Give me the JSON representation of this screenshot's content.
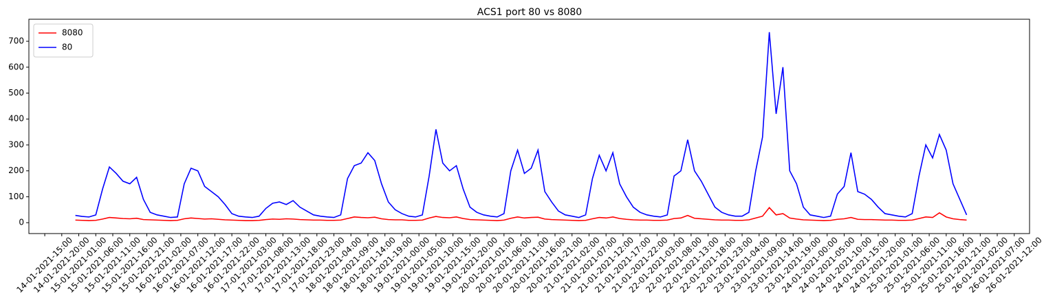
{
  "chart_data": {
    "type": "line",
    "title": "ACS1 port 80 vs 8080",
    "legend": "upper left",
    "x": [
      "15-01-2021-00:00",
      "15-01-2021-02:00",
      "15-01-2021-04:00",
      "15-01-2021-06:00",
      "15-01-2021-08:00",
      "15-01-2021-10:00",
      "15-01-2021-12:00",
      "15-01-2021-14:00",
      "15-01-2021-16:00",
      "15-01-2021-18:00",
      "15-01-2021-20:00",
      "15-01-2021-22:00",
      "16-01-2021-00:00",
      "16-01-2021-02:00",
      "16-01-2021-04:00",
      "16-01-2021-06:00",
      "16-01-2021-08:00",
      "16-01-2021-10:00",
      "16-01-2021-12:00",
      "16-01-2021-14:00",
      "16-01-2021-16:00",
      "16-01-2021-18:00",
      "16-01-2021-20:00",
      "16-01-2021-22:00",
      "17-01-2021-00:00",
      "17-01-2021-02:00",
      "17-01-2021-04:00",
      "17-01-2021-06:00",
      "17-01-2021-08:00",
      "17-01-2021-10:00",
      "17-01-2021-12:00",
      "17-01-2021-14:00",
      "17-01-2021-16:00",
      "17-01-2021-18:00",
      "17-01-2021-20:00",
      "17-01-2021-22:00",
      "18-01-2021-00:00",
      "18-01-2021-02:00",
      "18-01-2021-04:00",
      "18-01-2021-06:00",
      "18-01-2021-08:00",
      "18-01-2021-10:00",
      "18-01-2021-12:00",
      "18-01-2021-14:00",
      "18-01-2021-16:00",
      "18-01-2021-18:00",
      "18-01-2021-20:00",
      "18-01-2021-22:00",
      "19-01-2021-00:00",
      "19-01-2021-02:00",
      "19-01-2021-04:00",
      "19-01-2021-06:00",
      "19-01-2021-08:00",
      "19-01-2021-10:00",
      "19-01-2021-12:00",
      "19-01-2021-14:00",
      "19-01-2021-16:00",
      "19-01-2021-18:00",
      "19-01-2021-20:00",
      "19-01-2021-22:00",
      "20-01-2021-00:00",
      "20-01-2021-02:00",
      "20-01-2021-04:00",
      "20-01-2021-06:00",
      "20-01-2021-08:00",
      "20-01-2021-10:00",
      "20-01-2021-12:00",
      "20-01-2021-14:00",
      "20-01-2021-16:00",
      "20-01-2021-18:00",
      "20-01-2021-20:00",
      "20-01-2021-22:00",
      "21-01-2021-00:00",
      "21-01-2021-02:00",
      "21-01-2021-04:00",
      "21-01-2021-06:00",
      "21-01-2021-08:00",
      "21-01-2021-10:00",
      "21-01-2021-12:00",
      "21-01-2021-14:00",
      "21-01-2021-16:00",
      "21-01-2021-18:00",
      "21-01-2021-20:00",
      "21-01-2021-22:00",
      "22-01-2021-00:00",
      "22-01-2021-02:00",
      "22-01-2021-04:00",
      "22-01-2021-06:00",
      "22-01-2021-08:00",
      "22-01-2021-10:00",
      "22-01-2021-12:00",
      "22-01-2021-14:00",
      "22-01-2021-16:00",
      "22-01-2021-18:00",
      "22-01-2021-20:00",
      "22-01-2021-22:00",
      "23-01-2021-00:00",
      "23-01-2021-02:00",
      "23-01-2021-04:00",
      "23-01-2021-06:00",
      "23-01-2021-08:00",
      "23-01-2021-10:00",
      "23-01-2021-12:00",
      "23-01-2021-14:00",
      "23-01-2021-16:00",
      "23-01-2021-18:00",
      "23-01-2021-20:00",
      "23-01-2021-22:00",
      "24-01-2021-00:00",
      "24-01-2021-02:00",
      "24-01-2021-04:00",
      "24-01-2021-06:00",
      "24-01-2021-08:00",
      "24-01-2021-10:00",
      "24-01-2021-12:00",
      "24-01-2021-14:00",
      "24-01-2021-16:00",
      "24-01-2021-18:00",
      "24-01-2021-20:00",
      "24-01-2021-22:00",
      "25-01-2021-00:00",
      "25-01-2021-02:00",
      "25-01-2021-04:00",
      "25-01-2021-06:00",
      "25-01-2021-08:00",
      "25-01-2021-10:00",
      "25-01-2021-12:00",
      "25-01-2021-14:00",
      "25-01-2021-16:00",
      "25-01-2021-18:00",
      "25-01-2021-20:00",
      "25-01-2021-22:00"
    ],
    "series": [
      {
        "name": "8080",
        "color": "#ff0000",
        "values": [
          10,
          9,
          8,
          9,
          14,
          20,
          18,
          16,
          15,
          17,
          12,
          11,
          10,
          9,
          8,
          9,
          15,
          18,
          16,
          14,
          15,
          13,
          11,
          10,
          9,
          8,
          8,
          9,
          12,
          14,
          13,
          15,
          14,
          12,
          11,
          10,
          10,
          9,
          9,
          10,
          16,
          22,
          20,
          19,
          21,
          15,
          12,
          11,
          11,
          9,
          9,
          10,
          18,
          24,
          20,
          19,
          22,
          16,
          12,
          11,
          10,
          9,
          8,
          10,
          17,
          22,
          18,
          20,
          21,
          14,
          12,
          11,
          10,
          9,
          8,
          9,
          15,
          20,
          18,
          22,
          16,
          13,
          11,
          10,
          10,
          9,
          9,
          10,
          16,
          18,
          28,
          17,
          15,
          13,
          11,
          10,
          10,
          9,
          9,
          11,
          18,
          25,
          58,
          30,
          35,
          18,
          14,
          11,
          10,
          9,
          8,
          9,
          13,
          15,
          20,
          13,
          12,
          12,
          11,
          10,
          10,
          9,
          9,
          10,
          16,
          22,
          20,
          38,
          22,
          15,
          12,
          10
        ]
      },
      {
        "name": "80",
        "color": "#0000ff",
        "values": [
          28,
          24,
          22,
          30,
          130,
          215,
          190,
          160,
          150,
          175,
          90,
          40,
          30,
          25,
          20,
          22,
          150,
          210,
          200,
          140,
          120,
          100,
          70,
          35,
          25,
          22,
          20,
          25,
          55,
          75,
          80,
          70,
          85,
          60,
          45,
          30,
          25,
          22,
          20,
          30,
          170,
          220,
          230,
          270,
          240,
          150,
          80,
          50,
          35,
          25,
          22,
          30,
          180,
          360,
          230,
          200,
          220,
          130,
          60,
          40,
          30,
          25,
          22,
          35,
          200,
          280,
          190,
          210,
          280,
          120,
          80,
          45,
          30,
          25,
          20,
          30,
          170,
          260,
          200,
          270,
          150,
          100,
          60,
          40,
          30,
          25,
          22,
          30,
          180,
          200,
          320,
          200,
          160,
          110,
          60,
          40,
          30,
          25,
          25,
          40,
          200,
          330,
          735,
          420,
          600,
          200,
          150,
          60,
          30,
          25,
          20,
          25,
          110,
          140,
          270,
          120,
          110,
          90,
          60,
          35,
          30,
          25,
          22,
          35,
          180,
          300,
          250,
          340,
          280,
          150,
          90,
          30
        ]
      }
    ],
    "xlim": [
      "14-01-2021-10:20",
      "26-01-2021-16:30"
    ],
    "xticks": [
      "14-01-2021-15:00",
      "14-01-2021-20:00",
      "15-01-2021-01:00",
      "15-01-2021-06:00",
      "15-01-2021-11:00",
      "15-01-2021-16:00",
      "15-01-2021-21:00",
      "16-01-2021-02:00",
      "16-01-2021-07:00",
      "16-01-2021-12:00",
      "16-01-2021-17:00",
      "16-01-2021-22:00",
      "17-01-2021-03:00",
      "17-01-2021-08:00",
      "17-01-2021-13:00",
      "17-01-2021-18:00",
      "17-01-2021-23:00",
      "18-01-2021-04:00",
      "18-01-2021-09:00",
      "18-01-2021-14:00",
      "18-01-2021-19:00",
      "19-01-2021-00:00",
      "19-01-2021-05:00",
      "19-01-2021-10:00",
      "19-01-2021-15:00",
      "19-01-2021-20:00",
      "20-01-2021-01:00",
      "20-01-2021-06:00",
      "20-01-2021-11:00",
      "20-01-2021-16:00",
      "20-01-2021-21:00",
      "21-01-2021-02:00",
      "21-01-2021-07:00",
      "21-01-2021-12:00",
      "21-01-2021-17:00",
      "21-01-2021-22:00",
      "22-01-2021-03:00",
      "22-01-2021-08:00",
      "22-01-2021-13:00",
      "22-01-2021-18:00",
      "22-01-2021-23:00",
      "23-01-2021-04:00",
      "23-01-2021-09:00",
      "23-01-2021-14:00",
      "23-01-2021-19:00",
      "24-01-2021-00:00",
      "24-01-2021-05:00",
      "24-01-2021-10:00",
      "24-01-2021-15:00",
      "24-01-2021-20:00",
      "25-01-2021-01:00",
      "25-01-2021-06:00",
      "25-01-2021-11:00",
      "25-01-2021-16:00",
      "25-01-2021-21:00",
      "26-01-2021-02:00",
      "26-01-2021-07:00",
      "26-01-2021-12:00"
    ],
    "ylim": [
      -42,
      785
    ],
    "yticks": [
      0,
      100,
      200,
      300,
      400,
      500,
      600,
      700
    ]
  }
}
